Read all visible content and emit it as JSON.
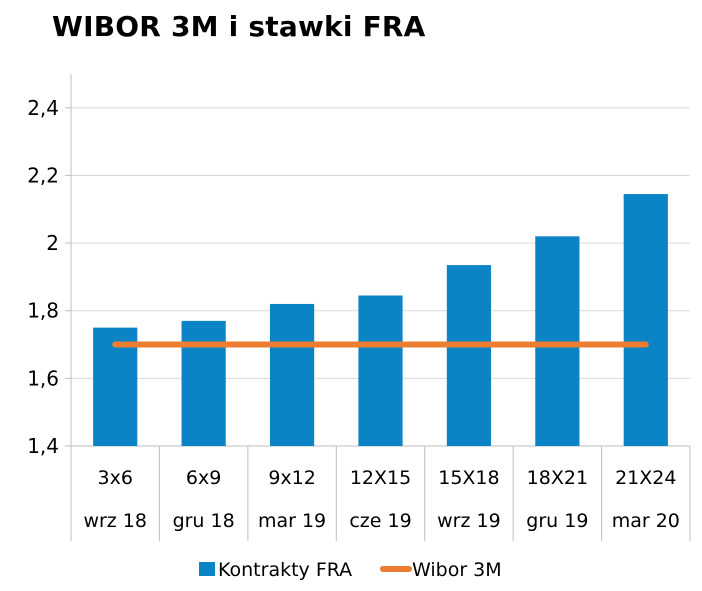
{
  "colors": {
    "bar": "#0B84C6",
    "line": "#ED7D31",
    "grid": "#D9D9D9",
    "axis": "#BFBFBF"
  },
  "chart_data": {
    "type": "bar",
    "title": "WIBOR 3M i stawki FRA",
    "categories": [
      "3x6",
      "6x9",
      "9x12",
      "12X15",
      "15X18",
      "18X21",
      "21X24"
    ],
    "sub_categories": [
      "wrz 18",
      "gru 18",
      "mar 19",
      "cze 19",
      "wrz 19",
      "gru 19",
      "mar 20"
    ],
    "series": [
      {
        "name": "Kontrakty FRA",
        "type": "bar",
        "values": [
          1.75,
          1.77,
          1.82,
          1.845,
          1.935,
          2.02,
          2.145
        ]
      },
      {
        "name": "Wibor 3M",
        "type": "line",
        "values": [
          1.7,
          1.7,
          1.7,
          1.7,
          1.7,
          1.7,
          1.7
        ]
      }
    ],
    "ylim": [
      1.4,
      2.5
    ],
    "yticks": [
      1.4,
      1.6,
      1.8,
      2.0,
      2.2,
      2.4
    ],
    "ytick_labels": [
      "1,4",
      "1,6",
      "1,8",
      "2",
      "2,2",
      "2,4"
    ],
    "grid": true,
    "legend": "bottom"
  }
}
